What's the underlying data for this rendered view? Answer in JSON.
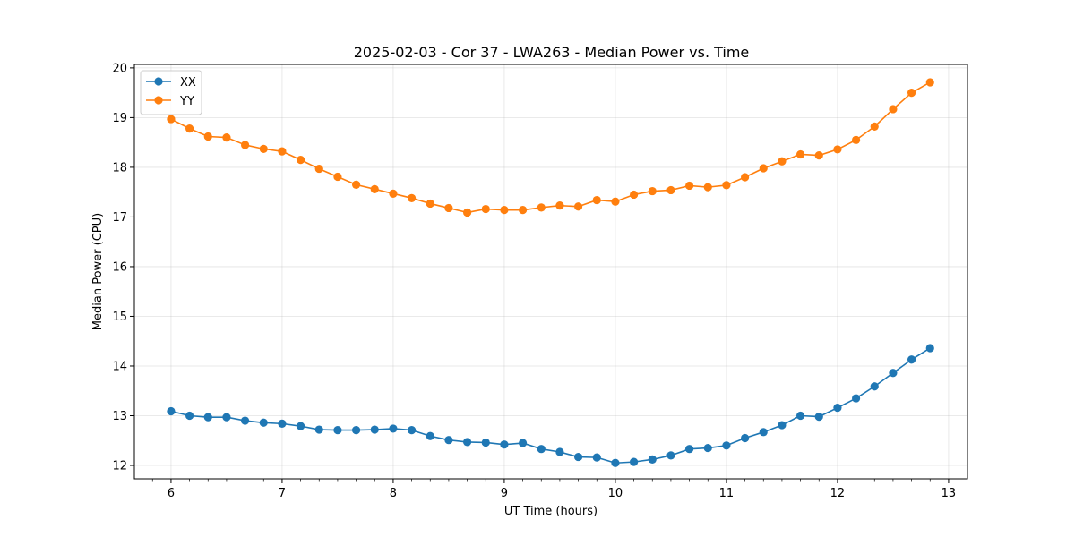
{
  "chart_data": {
    "type": "line",
    "title": "2025-02-03 - Cor 37 - LWA263 - Median Power vs. Time",
    "xlabel": "UT Time (hours)",
    "ylabel": "Median Power (CPU)",
    "xlim": [
      5.67,
      13.17
    ],
    "ylim": [
      11.73,
      20.07
    ],
    "xticks": [
      6,
      7,
      8,
      9,
      10,
      11,
      12,
      13
    ],
    "yticks": [
      12,
      13,
      14,
      15,
      16,
      17,
      18,
      19,
      20
    ],
    "grid": true,
    "legend_position": "top-left",
    "x": [
      6.0,
      6.1667,
      6.3333,
      6.5,
      6.6667,
      6.8333,
      7.0,
      7.1667,
      7.3333,
      7.5,
      7.6667,
      7.8333,
      8.0,
      8.1667,
      8.3333,
      8.5,
      8.6667,
      8.8333,
      9.0,
      9.1667,
      9.3333,
      9.5,
      9.6667,
      9.8333,
      10.0,
      10.1667,
      10.3333,
      10.5,
      10.6667,
      10.8333,
      11.0,
      11.1667,
      11.3333,
      11.5,
      11.6667,
      11.8333,
      12.0,
      12.1667,
      12.3333,
      12.5,
      12.6667,
      12.8333
    ],
    "series": [
      {
        "name": "XX",
        "color": "#1f77b4",
        "values": [
          13.09,
          13.0,
          12.97,
          12.97,
          12.9,
          12.86,
          12.84,
          12.79,
          12.72,
          12.71,
          12.71,
          12.72,
          12.74,
          12.71,
          12.59,
          12.51,
          12.47,
          12.46,
          12.42,
          12.45,
          12.33,
          12.27,
          12.17,
          12.16,
          12.05,
          12.07,
          12.12,
          12.2,
          12.33,
          12.35,
          12.4,
          12.55,
          12.67,
          12.81,
          13.0,
          12.98,
          13.16,
          13.35,
          13.59,
          13.86,
          14.13,
          14.36
        ]
      },
      {
        "name": "YY",
        "color": "#ff7f0e",
        "values": [
          18.97,
          18.78,
          18.62,
          18.6,
          18.45,
          18.37,
          18.32,
          18.15,
          17.97,
          17.81,
          17.65,
          17.56,
          17.47,
          17.38,
          17.27,
          17.18,
          17.09,
          17.16,
          17.14,
          17.14,
          17.19,
          17.23,
          17.21,
          17.34,
          17.31,
          17.45,
          17.52,
          17.54,
          17.63,
          17.6,
          17.64,
          17.8,
          17.98,
          18.12,
          18.26,
          18.24,
          18.36,
          18.55,
          18.82,
          19.17,
          19.5,
          19.71
        ]
      }
    ]
  }
}
